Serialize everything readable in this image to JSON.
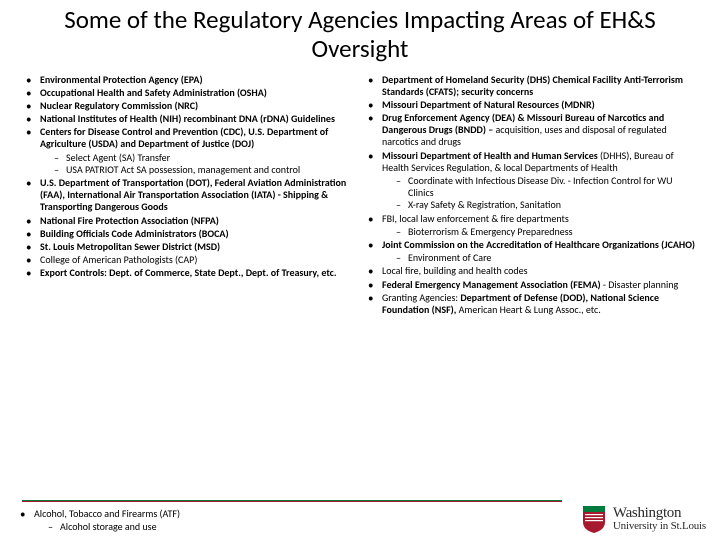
{
  "title": "Some of the Regulatory Agencies Impacting Areas of EH&S Oversight",
  "left": [
    {
      "text": "Environmental Protection Agency (EPA)",
      "bold": true
    },
    {
      "text": "Occupational Health and Safety Administration (OSHA)",
      "bold": true
    },
    {
      "text": "Nuclear Regulatory Commission (NRC)",
      "bold": true
    },
    {
      "text": "National Institutes of Health (NIH) recombinant DNA (rDNA) Guidelines",
      "bold": true
    },
    {
      "text": "Centers for Disease Control and Prevention (CDC), U.S. Department of Agriculture (USDA) and Department of Justice (DOJ)",
      "bold": true,
      "sub": [
        "Select Agent (SA) Transfer",
        "USA PATRIOT Act SA possession, management and control"
      ]
    },
    {
      "text": "U.S. Department of Transportation (DOT), Federal Aviation Administration (FAA), International Air Transportation Association (IATA) - Shipping & Transporting Dangerous Goods",
      "bold": true
    },
    {
      "text": "National Fire Protection Association (NFPA)",
      "bold": true
    },
    {
      "text": "Building Officials Code Administrators (BOCA)",
      "bold": true
    },
    {
      "text": "St. Louis Metropolitan Sewer District (MSD)",
      "bold": true
    },
    {
      "text": "College of American Pathologists (CAP)",
      "bold": false
    },
    {
      "text": "Export Controls: Dept. of Commerce, State Dept., Dept. of Treasury, etc.",
      "bold": true
    }
  ],
  "leftExtra": [
    {
      "text": "Alcohol, Tobacco and Firearms (ATF)",
      "bold": false,
      "sub": [
        "Alcohol storage and use"
      ]
    }
  ],
  "right": [
    {
      "text_html": "<span class='bold'>Department of Homeland Security (DHS) Chemical Facility Anti-Terrorism Standards (CFATS); security concerns</span>"
    },
    {
      "text_html": "<span class='bold'>Missouri Department of Natural Resources (MDNR)</span>"
    },
    {
      "text_html": "<span class='bold'>Drug Enforcement Agency (DEA) &amp; Missouri Bureau of Narcotics and Dangerous Drugs (BNDD) –</span> acquisition, uses and disposal of regulated narcotics and drugs"
    },
    {
      "text_html": "<span class='bold'>Missouri Department of Health and Human Services</span> (DHHS), Bureau of Health Services Regulation, &amp; local Departments of Health",
      "sub": [
        "Coordinate with Infectious Disease Div. - Infection Control for WU Clinics",
        "X-ray Safety & Registration, Sanitation"
      ]
    },
    {
      "text_html": "FBI, local law enforcement &amp; fire departments",
      "sub": [
        "Bioterrorism & Emergency Preparedness"
      ]
    },
    {
      "text_html": "<span class='bold'>Joint Commission on the Accreditation of Healthcare Organizations (JCAHO)</span>",
      "sub": [
        "Environment of Care"
      ]
    },
    {
      "text_html": "Local fire, building and health codes"
    },
    {
      "text_html": "<span class='bold'>Federal Emergency Management Association (FEMA)</span> - Disaster planning"
    },
    {
      "text_html": "Granting Agencies: <span class='bold'>Department of Defense (DOD), National Science Foundation (NSF),</span> American Heart &amp; Lung Assoc., etc."
    }
  ],
  "logo": {
    "top": "Washington",
    "bottom": "University in St.Louis"
  },
  "colors": {
    "text": "#000000",
    "background": "#ffffff",
    "shield_red": "#a6192e",
    "shield_green": "#007a3d"
  }
}
